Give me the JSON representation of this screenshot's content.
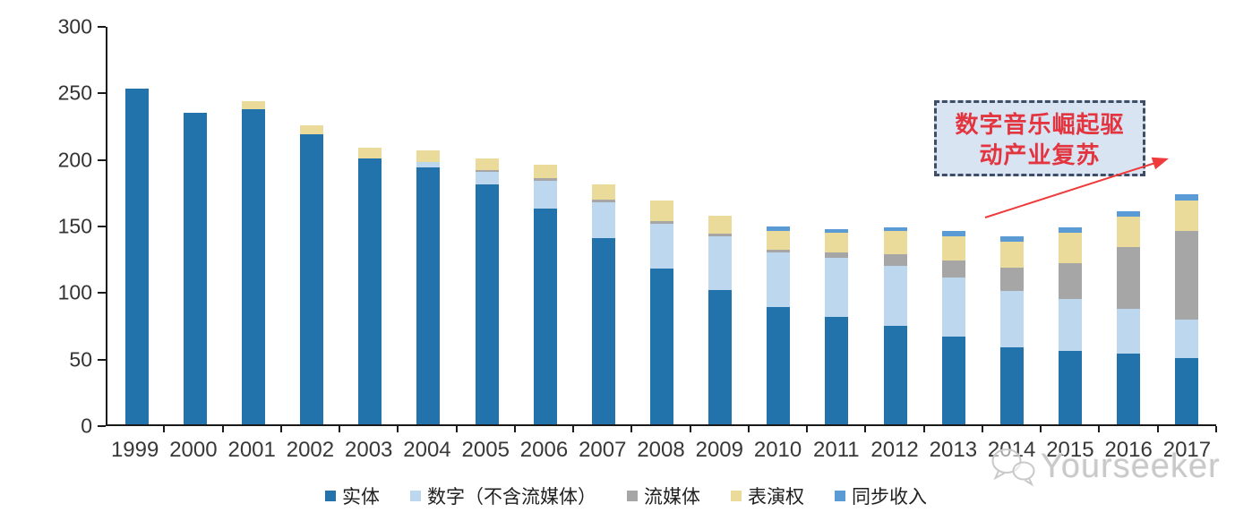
{
  "chart_data": {
    "type": "bar",
    "stacked": true,
    "title": "",
    "xlabel": "",
    "ylabel": "",
    "grid": false,
    "legend_position": "bottom",
    "ylim": [
      0,
      300
    ],
    "yticks": [
      0,
      50,
      100,
      150,
      200,
      250,
      300
    ],
    "categories": [
      "1999",
      "2000",
      "2001",
      "2002",
      "2003",
      "2004",
      "2005",
      "2006",
      "2007",
      "2008",
      "2009",
      "2010",
      "2011",
      "2012",
      "2013",
      "2014",
      "2015",
      "2016",
      "2017"
    ],
    "series": [
      {
        "name": "实体",
        "color": "#2272ac",
        "values": [
          252,
          234,
          237,
          218,
          200,
          193,
          180,
          162,
          140,
          117,
          101,
          88,
          81,
          74,
          66,
          58,
          55,
          53,
          50
        ]
      },
      {
        "name": "数字（不含流媒体）",
        "color": "#bdd7ee",
        "values": [
          0,
          0,
          0,
          0,
          0,
          4,
          10,
          21,
          27,
          34,
          40,
          41,
          44,
          45,
          44,
          42,
          39,
          34,
          29
        ]
      },
      {
        "name": "流媒体",
        "color": "#a6a6a6",
        "values": [
          0,
          0,
          0,
          0,
          0,
          0,
          1,
          2,
          2,
          2,
          2,
          2,
          4,
          9,
          13,
          18,
          27,
          46,
          66
        ]
      },
      {
        "name": "表演权",
        "color": "#eadb9b",
        "values": [
          0,
          0,
          6,
          7,
          8,
          9,
          9,
          10,
          11,
          15,
          14,
          14,
          15,
          17,
          18,
          19,
          23,
          23,
          23
        ]
      },
      {
        "name": "同步收入",
        "color": "#5b9bd5",
        "values": [
          0,
          0,
          0,
          0,
          0,
          0,
          0,
          0,
          0,
          0,
          0,
          4,
          3,
          3,
          4,
          4,
          4,
          4,
          5
        ]
      }
    ]
  },
  "annotation": {
    "line1": "数字音乐崛起驱",
    "line2": "动产业复苏",
    "text_color": "#e2353f",
    "box_fill": "#d9e4f3",
    "box_border": "#3f4e66",
    "arrow_color": "#ef3b3b"
  },
  "watermark": {
    "text": "Yourseeker"
  }
}
